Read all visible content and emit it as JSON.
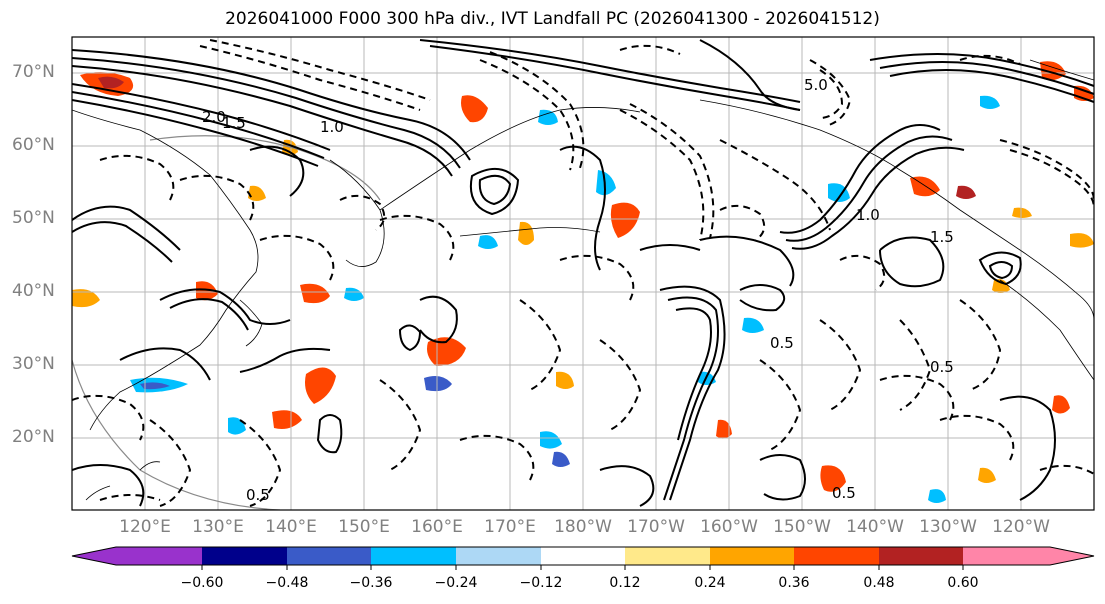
{
  "title": "2026041000 F000 300 hPa div., IVT Landfall PC (2026041300 - 2026041512)",
  "lat_labels": [
    "70°N",
    "60°N",
    "50°N",
    "40°N",
    "30°N",
    "20°N"
  ],
  "lat_values": [
    70,
    60,
    50,
    40,
    30,
    20
  ],
  "lon_labels": [
    "120°E",
    "130°E",
    "140°E",
    "150°E",
    "160°E",
    "170°E",
    "180°W",
    "170°W",
    "160°W",
    "150°W",
    "140°W",
    "130°W",
    "120°W"
  ],
  "contour_labels": [
    "0.5",
    "1.0",
    "1.5",
    "2.0",
    "5.0",
    "0.5",
    "1.0",
    "0.5",
    "1.5",
    "0.5"
  ],
  "colorbar": {
    "colors": [
      "#9932cc",
      "#00008b",
      "#3a5bc8",
      "#00bfff",
      "#add8f5",
      "#ffffff",
      "#ffe98a",
      "#ffa500",
      "#ff4500",
      "#b22222",
      "#ff85a8"
    ],
    "tick_labels": [
      "−0.60",
      "−0.48",
      "−0.36",
      "−0.24",
      "−0.12",
      "0.12",
      "0.24",
      "0.36",
      "0.48",
      "0.60"
    ]
  }
}
